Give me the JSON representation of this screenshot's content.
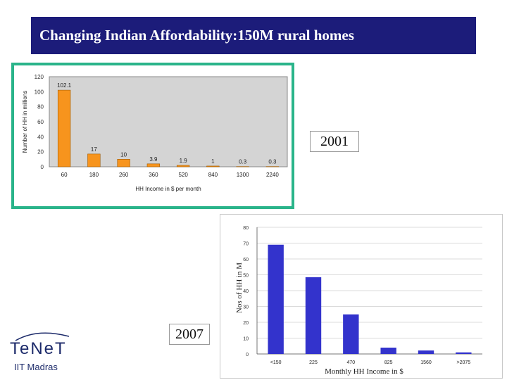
{
  "slide": {
    "title": "Changing Indian Affordability:150M rural homes",
    "label_2001": "2001",
    "label_2007": "2007",
    "logo_name": "TeNeT",
    "logo_sub": "IIT Madras"
  },
  "colors": {
    "title_bg": "#1c1c7a",
    "frame": "#2ab48a",
    "bar_2001": "#f7941d",
    "bar_2007": "#3333cc",
    "plot_bg_2001": "#d4d4d4"
  },
  "chart_data": [
    {
      "type": "bar",
      "title": "",
      "xlabel": "HH Income in $ per month",
      "ylabel": "Number of HH in millions",
      "categories": [
        "60",
        "180",
        "260",
        "360",
        "520",
        "840",
        "1300",
        "2240"
      ],
      "values": [
        102.1,
        17,
        10,
        3.9,
        1.9,
        1,
        0.3,
        0.3
      ],
      "data_labels": [
        "102.1",
        "17",
        "10",
        "3.9",
        "1.9",
        "1",
        "0.3",
        "0.3"
      ],
      "ylim": [
        0,
        120
      ],
      "yticks": [
        0,
        20,
        40,
        60,
        80,
        100,
        120
      ],
      "grid": false,
      "legend": "none"
    },
    {
      "type": "bar",
      "title": "",
      "xlabel": "Monthly HH Income in $",
      "ylabel": "Nos of HH in M",
      "categories": [
        "<150",
        "225",
        "470",
        "825",
        "1560",
        ">2075"
      ],
      "values": [
        69,
        48.5,
        25,
        4,
        2.2,
        1
      ],
      "ylim": [
        0,
        80
      ],
      "yticks": [
        0,
        10,
        20,
        30,
        40,
        50,
        60,
        70,
        80
      ],
      "grid": true,
      "legend": "none"
    }
  ]
}
